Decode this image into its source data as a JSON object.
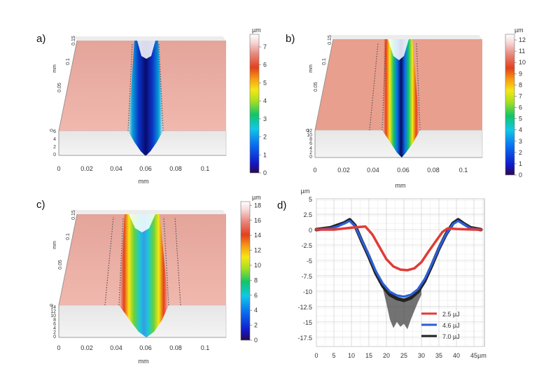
{
  "panels": [
    {
      "id": "a",
      "label": "a)",
      "x_axis_label": "mm",
      "y_axis_label": "mm",
      "x_ticks": [
        "0",
        "0.02",
        "0.04",
        "0.06",
        "0.08",
        "0.1"
      ],
      "y_ticks": [
        "0",
        "0.05",
        "0.1",
        "0.15"
      ],
      "z_ticks": [
        "0",
        "2",
        "4",
        "6"
      ],
      "colorbar": {
        "unit": "µm",
        "ticks": [
          "0",
          "1",
          "2",
          "3",
          "4",
          "5",
          "6",
          "7"
        ],
        "max": 7.7
      }
    },
    {
      "id": "b",
      "label": "b)",
      "x_axis_label": "mm",
      "y_axis_label": "mm",
      "x_ticks": [
        "0",
        "0.02",
        "0.04",
        "0.06",
        "0.08",
        "0.1"
      ],
      "y_ticks": [
        "0",
        "0.05",
        "0.1",
        "0.15"
      ],
      "z_ticks": [
        "0",
        "2",
        "4",
        "6",
        "8",
        "10",
        "12"
      ],
      "colorbar": {
        "unit": "µm",
        "ticks": [
          "0",
          "1",
          "2",
          "3",
          "4",
          "5",
          "6",
          "7",
          "8",
          "9",
          "10",
          "11",
          "12"
        ],
        "max": 12.5
      }
    },
    {
      "id": "c",
      "label": "c)",
      "x_axis_label": "mm",
      "y_axis_label": "mm",
      "x_ticks": [
        "0",
        "0.02",
        "0.04",
        "0.06",
        "0.08",
        "0.1"
      ],
      "y_ticks": [
        "0",
        "0.05",
        "0.1",
        "0.15"
      ],
      "z_ticks": [
        "0",
        "2",
        "4",
        "6",
        "8",
        "10",
        "12",
        "14"
      ],
      "colorbar": {
        "unit": "µm",
        "ticks": [
          "0",
          "2",
          "4",
          "6",
          "8",
          "10",
          "12",
          "14",
          "16",
          "18"
        ],
        "max": 18.5
      }
    }
  ],
  "colors": {
    "surface": "#e6a69c",
    "colormap": [
      "#2a0a4a",
      "#1218c8",
      "#0a6cf0",
      "#10c8e8",
      "#12c46a",
      "#a8e020",
      "#f6e616",
      "#f79a14",
      "#e2401c",
      "#e88a80",
      "#f7d6d6",
      "#ffffff"
    ]
  },
  "chart_data": {
    "type": "line",
    "panel_label": "d)",
    "y_unit": "µm",
    "x_unit": "µm",
    "xlim": [
      0,
      48
    ],
    "ylim": [
      -19,
      5
    ],
    "x_ticks": [
      0,
      5,
      10,
      15,
      20,
      25,
      30,
      35,
      40,
      45
    ],
    "y_ticks": [
      5,
      2.5,
      0,
      -2.5,
      -5,
      -7.5,
      -10,
      -12.5,
      -15,
      -17.5
    ],
    "grid": true,
    "legend_position": "bottom-right",
    "series": [
      {
        "name": "2.5 µJ",
        "color": "#e03b35",
        "x": [
          0,
          5,
          10,
          12,
          14,
          16,
          18,
          20,
          22,
          24,
          26,
          28,
          30,
          32,
          34,
          36,
          37.5,
          40,
          45,
          47
        ],
        "y": [
          0,
          0,
          0.3,
          0.4,
          0.5,
          -0.8,
          -2.8,
          -4.8,
          -6.0,
          -6.5,
          -6.6,
          -6.3,
          -5.3,
          -3.6,
          -2.0,
          -0.4,
          0.2,
          0.1,
          0,
          0
        ]
      },
      {
        "name": "4.6 µJ",
        "color": "#2c5fd8",
        "x": [
          0,
          4,
          6,
          8,
          9.5,
          11,
          13,
          15,
          17,
          19,
          21,
          23,
          25,
          27,
          29,
          31,
          33,
          35,
          37,
          39,
          40.5,
          42,
          44,
          47
        ],
        "y": [
          0,
          0.2,
          0.5,
          1.0,
          1.4,
          0.6,
          -1.8,
          -4.2,
          -6.8,
          -8.8,
          -10.1,
          -10.7,
          -10.9,
          -10.6,
          -9.7,
          -8.0,
          -5.6,
          -3.0,
          -0.8,
          0.9,
          1.4,
          0.9,
          0.2,
          0
        ]
      },
      {
        "name": "7.0 µJ",
        "color": "#222222",
        "x": [
          0,
          4,
          6,
          8,
          9.5,
          11,
          13,
          15,
          17,
          19,
          21,
          23,
          25,
          27,
          29,
          31,
          33,
          35,
          37,
          39,
          40.5,
          42,
          44,
          47
        ],
        "y": [
          0,
          0.3,
          0.7,
          1.1,
          1.6,
          0.7,
          -1.9,
          -4.4,
          -7.1,
          -9.2,
          -10.6,
          -11.2,
          -11.5,
          -11.1,
          -10.1,
          -8.3,
          -5.8,
          -3.1,
          -0.8,
          1.0,
          1.6,
          1.0,
          0.3,
          0
        ],
        "band_x": [
          19,
          20,
          21,
          22,
          23,
          24,
          25,
          26,
          27,
          28,
          29,
          30
        ],
        "band_lower": [
          -9.6,
          -12.0,
          -14.6,
          -16.0,
          -15.0,
          -15.8,
          -15.3,
          -16.2,
          -14.6,
          -13.2,
          -11.8,
          -10.6
        ]
      }
    ]
  }
}
